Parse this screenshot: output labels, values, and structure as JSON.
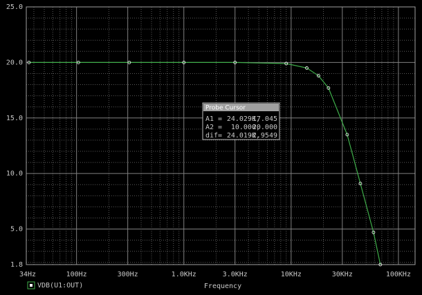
{
  "chart_data": {
    "type": "line",
    "x_scale": "log",
    "grid": true,
    "x_label": "Frequency",
    "xlim": [
      34,
      143000
    ],
    "xticks": [
      {
        "value": 34,
        "label": "34Hz"
      },
      {
        "value": 100,
        "label": "100Hz"
      },
      {
        "value": 300,
        "label": "300Hz"
      },
      {
        "value": 1000,
        "label": "1.0KHz"
      },
      {
        "value": 3000,
        "label": "3.0KHz"
      },
      {
        "value": 10000,
        "label": "10KHz"
      },
      {
        "value": 30000,
        "label": "30KHz"
      },
      {
        "value": 100000,
        "label": "100KHz"
      }
    ],
    "ylim": [
      1.8,
      25
    ],
    "yticks": [
      1.8,
      {
        "value": 5,
        "label": "5.0"
      },
      {
        "value": 10,
        "label": "10.0"
      },
      {
        "value": 15,
        "label": "15.0"
      },
      {
        "value": 20,
        "label": "20.0"
      },
      {
        "value": 25,
        "label": "25.0"
      }
    ],
    "x": [
      36,
      104,
      310,
      1000,
      3000,
      9000,
      14000,
      18000,
      22300,
      33300,
      44200,
      58600,
      67900
    ],
    "series": [
      {
        "name": "VDB(U1:OUT)",
        "color": "#3fae4a",
        "values": [
          20,
          20,
          20,
          20,
          20,
          19.9,
          19.5,
          18.8,
          17.7,
          13.5,
          9.1,
          4.7,
          1.8
        ]
      }
    ],
    "cursor": {
      "title": "Probe Cursor",
      "rows": [
        [
          "A1 =",
          "24.029K,",
          "17.045"
        ],
        [
          "A2 =",
          "10.000,",
          "20.000"
        ],
        [
          "dif=",
          "24.019K,",
          "-2.9549"
        ]
      ]
    }
  }
}
